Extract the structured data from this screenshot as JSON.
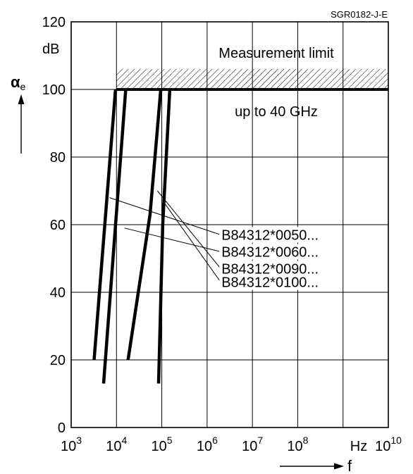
{
  "chart_data": {
    "type": "line",
    "doc_code": "SGR0182-J-E",
    "y_unit": "dB",
    "y_symbol": "α",
    "y_symbol_sub": "e",
    "x_symbol": "f",
    "x_unit": "Hz",
    "xscale": "log",
    "xlim": [
      1000,
      10000000000
    ],
    "ylim": [
      0,
      120
    ],
    "grid": true,
    "x_ticks": [
      {
        "base": "10",
        "exp": "3"
      },
      {
        "base": "10",
        "exp": "4"
      },
      {
        "base": "10",
        "exp": "5"
      },
      {
        "base": "10",
        "exp": "6"
      },
      {
        "base": "10",
        "exp": "7"
      },
      {
        "base": "10",
        "exp": "8"
      },
      {
        "base": "",
        "exp": ""
      },
      {
        "base": "10",
        "exp": "10"
      }
    ],
    "y_ticks": [
      "0",
      "20",
      "40",
      "60",
      "80",
      "100",
      "120"
    ],
    "measurement_limit": {
      "value": 100,
      "label": "Measurement limit",
      "sublabel": "up to 40 GHz"
    },
    "series": [
      {
        "name": "B84312*0050...",
        "points": [
          [
            3200,
            20
          ],
          [
            9500,
            100
          ]
        ]
      },
      {
        "name": "B84312*0060...",
        "points": [
          [
            5200,
            13
          ],
          [
            16000,
            100
          ]
        ]
      },
      {
        "name": "B84312*0090...",
        "points": [
          [
            18000,
            20
          ],
          [
            55000,
            63
          ],
          [
            95000,
            100
          ]
        ]
      },
      {
        "name": "B84312*0100...",
        "points": [
          [
            85000,
            13
          ],
          [
            105000,
            60
          ],
          [
            150000,
            100
          ]
        ]
      }
    ],
    "legend": [
      {
        "label": "B84312*0050...",
        "series_index": 0,
        "from": [
          7000,
          68
        ],
        "to": [
          2000000,
          57
        ]
      },
      {
        "label": "B84312*0060...",
        "series_index": 1,
        "from": [
          15000,
          59
        ],
        "to": [
          2000000,
          52
        ]
      },
      {
        "label": "B84312*0090...",
        "series_index": 2,
        "from": [
          80000,
          70
        ],
        "to": [
          2000000,
          47
        ]
      },
      {
        "label": "B84312*0100...",
        "series_index": 3,
        "from": [
          120000,
          66
        ],
        "to": [
          2000000,
          43
        ]
      }
    ]
  }
}
